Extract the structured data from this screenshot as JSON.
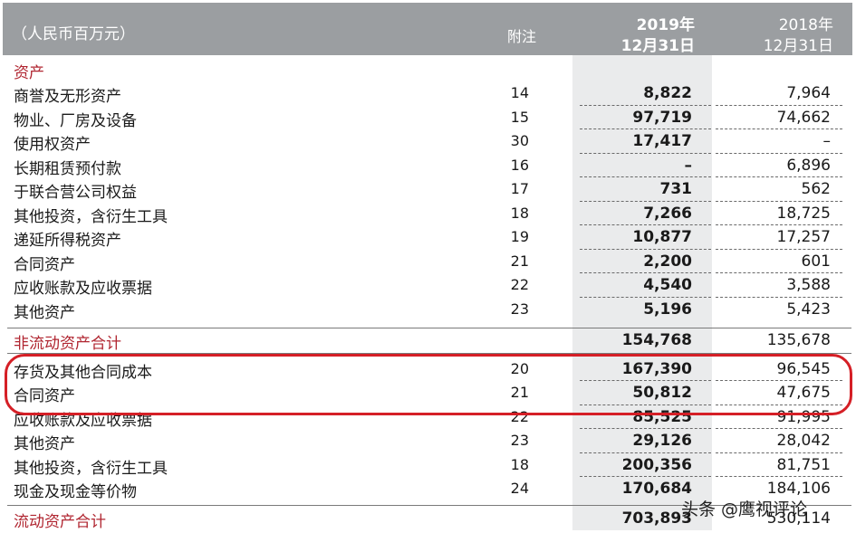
{
  "header": {
    "unit": "（人民币百万元）",
    "note": "附注",
    "current_year": "2019年",
    "current_date": "12月31日",
    "prior_year": "2018年",
    "prior_date": "12月31日"
  },
  "section_title": "资产",
  "rows": [
    {
      "label": "商誉及无形资产",
      "note": "14",
      "v2019": "8,822",
      "v2018": "7,964"
    },
    {
      "label": "物业、厂房及设备",
      "note": "15",
      "v2019": "97,719",
      "v2018": "74,662"
    },
    {
      "label": "使用权资产",
      "note": "30",
      "v2019": "17,417",
      "v2018": "–"
    },
    {
      "label": "长期租赁预付款",
      "note": "16",
      "v2019": "–",
      "v2018": "6,896"
    },
    {
      "label": "于联合营公司权益",
      "note": "17",
      "v2019": "731",
      "v2018": "562"
    },
    {
      "label": "其他投资，含衍生工具",
      "note": "18",
      "v2019": "7,266",
      "v2018": "18,725"
    },
    {
      "label": "递延所得税资产",
      "note": "19",
      "v2019": "10,877",
      "v2018": "17,257"
    },
    {
      "label": "合同资产",
      "note": "21",
      "v2019": "2,200",
      "v2018": "601"
    },
    {
      "label": "应收账款及应收票据",
      "note": "22",
      "v2019": "4,540",
      "v2018": "3,588"
    },
    {
      "label": "其他资产",
      "note": "23",
      "v2019": "5,196",
      "v2018": "5,423"
    }
  ],
  "noncurrent_total": {
    "label": "非流动资产合计",
    "v2019": "154,768",
    "v2018": "135,678"
  },
  "current_rows": [
    {
      "label": "存货及其他合同成本",
      "note": "20",
      "v2019": "167,390",
      "v2018": "96,545"
    },
    {
      "label": "合同资产",
      "note": "21",
      "v2019": "50,812",
      "v2018": "47,675"
    },
    {
      "label": "应收账款及应收票据",
      "note": "22",
      "v2019": "85,525",
      "v2018": "91,995"
    },
    {
      "label": "其他资产",
      "note": "23",
      "v2019": "29,126",
      "v2018": "28,042"
    },
    {
      "label": "其他投资，含衍生工具",
      "note": "18",
      "v2019": "200,356",
      "v2018": "81,751"
    },
    {
      "label": "现金及现金等价物",
      "note": "24",
      "v2019": "170,684",
      "v2018": "184,106"
    }
  ],
  "current_total": {
    "label": "流动资产合计",
    "v2019": "703,893",
    "v2018": "530,114"
  },
  "watermark": "头条 @鹰视评论",
  "colors": {
    "header_bg": "#9b9ea1",
    "accent_red": "#b02530",
    "highlight": "#d51f26",
    "column_shade": "#eaebec"
  }
}
